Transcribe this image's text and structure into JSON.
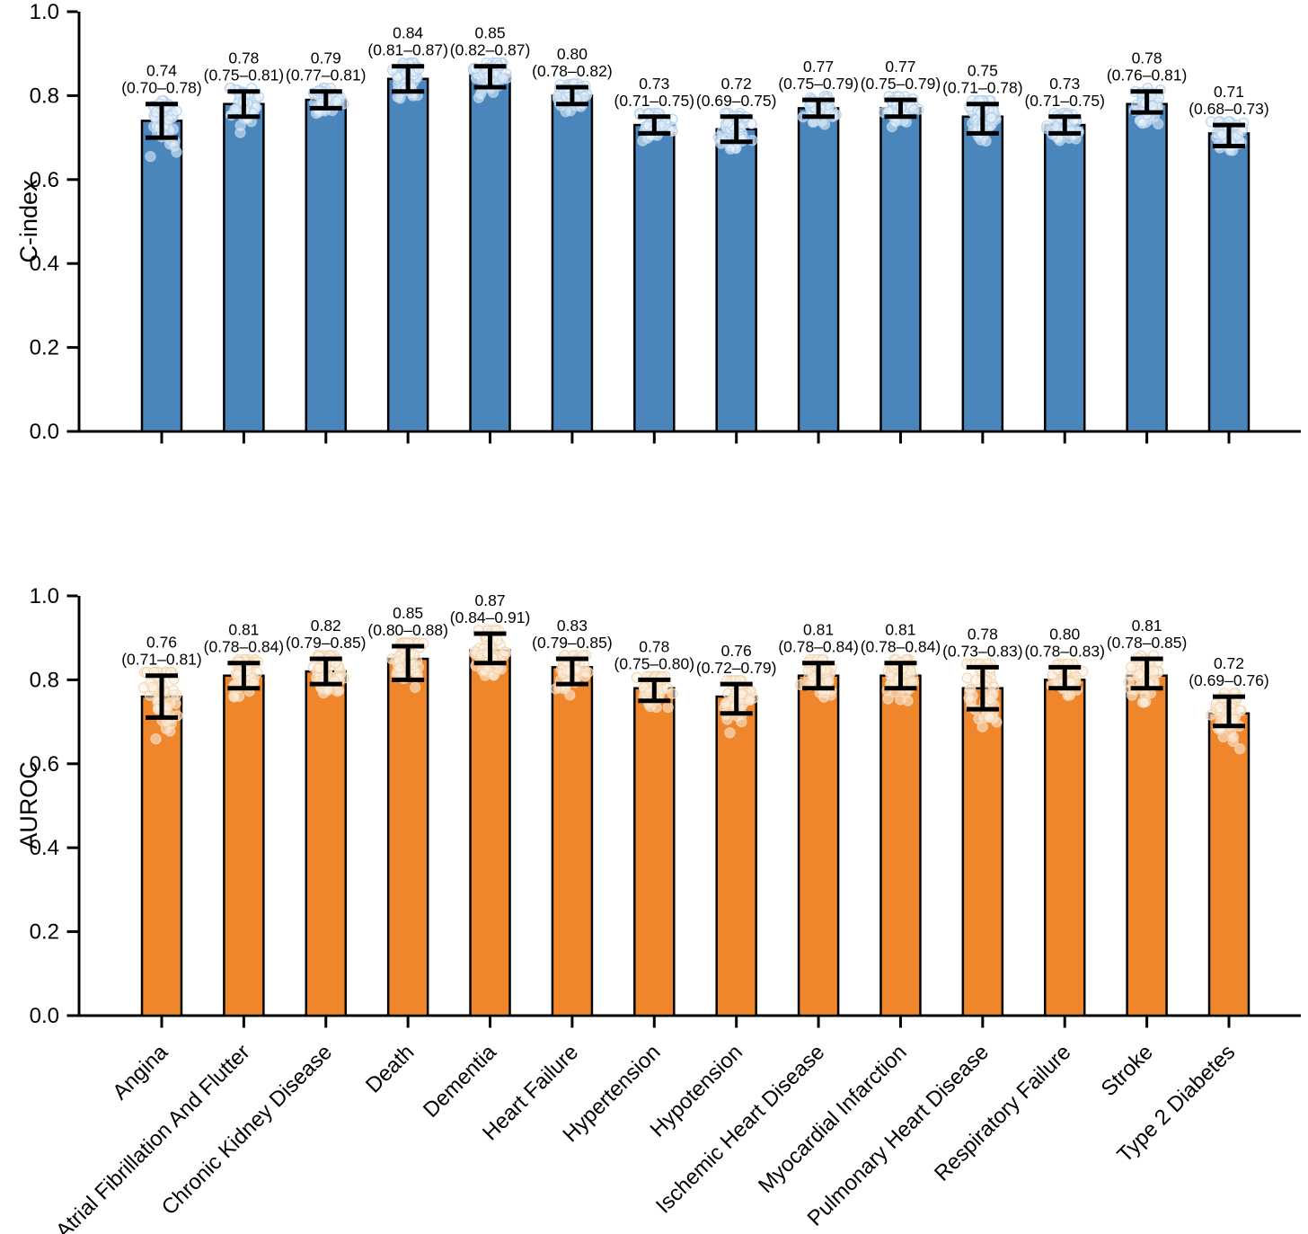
{
  "figure": {
    "background": "#ffffff"
  },
  "categories": [
    "Angina",
    "Atrial Fibrillation And Flutter",
    "Chronic Kidney Disease",
    "Death",
    "Dementia",
    "Heart Failure",
    "Hypertension",
    "Hypotension",
    "Ischemic Heart Disease",
    "Myocardial Infarction",
    "Pulmonary Heart Disease",
    "Respiratory Failure",
    "Stroke",
    "Type 2 Diabetes"
  ],
  "chart_data": [
    {
      "type": "bar",
      "panel": "top",
      "ylabel": "C-index",
      "ylim": [
        0,
        1
      ],
      "yticks": [
        "0.0",
        "0.2",
        "0.4",
        "0.6",
        "0.8",
        "1.0"
      ],
      "grid": false,
      "legend": false,
      "bar_color": "#4A85BC",
      "bar_edge_color": "#000000",
      "error_color": "#000000",
      "point_fill": "rgba(234,242,250,0.55)",
      "point_edge": "rgba(180,208,235,0.85)",
      "show_category_labels": false,
      "bars": [
        {
          "category": "Angina",
          "value": 0.74,
          "ci_low": 0.7,
          "ci_high": 0.78,
          "label_value": "0.74",
          "label_ci": "(0.70–0.78)"
        },
        {
          "category": "Atrial Fibrillation And Flutter",
          "value": 0.78,
          "ci_low": 0.75,
          "ci_high": 0.81,
          "label_value": "0.78",
          "label_ci": "(0.75–0.81)"
        },
        {
          "category": "Chronic Kidney Disease",
          "value": 0.79,
          "ci_low": 0.77,
          "ci_high": 0.81,
          "label_value": "0.79",
          "label_ci": "(0.77–0.81)"
        },
        {
          "category": "Death",
          "value": 0.84,
          "ci_low": 0.81,
          "ci_high": 0.87,
          "label_value": "0.84",
          "label_ci": "(0.81–0.87)"
        },
        {
          "category": "Dementia",
          "value": 0.85,
          "ci_low": 0.82,
          "ci_high": 0.87,
          "label_value": "0.85",
          "label_ci": "(0.82–0.87)"
        },
        {
          "category": "Heart Failure",
          "value": 0.8,
          "ci_low": 0.78,
          "ci_high": 0.82,
          "label_value": "0.80",
          "label_ci": "(0.78–0.82)"
        },
        {
          "category": "Hypertension",
          "value": 0.73,
          "ci_low": 0.71,
          "ci_high": 0.75,
          "label_value": "0.73",
          "label_ci": "(0.71–0.75)"
        },
        {
          "category": "Hypotension",
          "value": 0.72,
          "ci_low": 0.69,
          "ci_high": 0.75,
          "label_value": "0.72",
          "label_ci": "(0.69–0.75)"
        },
        {
          "category": "Ischemic Heart Disease",
          "value": 0.77,
          "ci_low": 0.75,
          "ci_high": 0.79,
          "label_value": "0.77",
          "label_ci": "(0.75–0.79)"
        },
        {
          "category": "Myocardial Infarction",
          "value": 0.77,
          "ci_low": 0.75,
          "ci_high": 0.79,
          "label_value": "0.77",
          "label_ci": "(0.75–0.79)"
        },
        {
          "category": "Pulmonary Heart Disease",
          "value": 0.75,
          "ci_low": 0.71,
          "ci_high": 0.78,
          "label_value": "0.75",
          "label_ci": "(0.71–0.78)"
        },
        {
          "category": "Respiratory Failure",
          "value": 0.73,
          "ci_low": 0.71,
          "ci_high": 0.75,
          "label_value": "0.73",
          "label_ci": "(0.71–0.75)"
        },
        {
          "category": "Stroke",
          "value": 0.78,
          "ci_low": 0.76,
          "ci_high": 0.81,
          "label_value": "0.78",
          "label_ci": "(0.76–0.81)"
        },
        {
          "category": "Type 2 Diabetes",
          "value": 0.71,
          "ci_low": 0.68,
          "ci_high": 0.73,
          "label_value": "0.71",
          "label_ci": "(0.68–0.73)"
        }
      ]
    },
    {
      "type": "bar",
      "panel": "bottom",
      "ylabel": "AUROC",
      "ylim": [
        0,
        1
      ],
      "yticks": [
        "0.0",
        "0.2",
        "0.4",
        "0.6",
        "0.8",
        "1.0"
      ],
      "grid": false,
      "legend": false,
      "bar_color": "#EF862C",
      "bar_edge_color": "#000000",
      "error_color": "#000000",
      "point_fill": "rgba(252,243,231,0.55)",
      "point_edge": "rgba(243,211,173,0.85)",
      "show_category_labels": true,
      "bars": [
        {
          "category": "Angina",
          "value": 0.76,
          "ci_low": 0.71,
          "ci_high": 0.81,
          "label_value": "0.76",
          "label_ci": "(0.71–0.81)"
        },
        {
          "category": "Atrial Fibrillation And Flutter",
          "value": 0.81,
          "ci_low": 0.78,
          "ci_high": 0.84,
          "label_value": "0.81",
          "label_ci": "(0.78–0.84)"
        },
        {
          "category": "Chronic Kidney Disease",
          "value": 0.82,
          "ci_low": 0.79,
          "ci_high": 0.85,
          "label_value": "0.82",
          "label_ci": "(0.79–0.85)"
        },
        {
          "category": "Death",
          "value": 0.85,
          "ci_low": 0.8,
          "ci_high": 0.88,
          "label_value": "0.85",
          "label_ci": "(0.80–0.88)"
        },
        {
          "category": "Dementia",
          "value": 0.87,
          "ci_low": 0.84,
          "ci_high": 0.91,
          "label_value": "0.87",
          "label_ci": "(0.84–0.91)"
        },
        {
          "category": "Heart Failure",
          "value": 0.83,
          "ci_low": 0.79,
          "ci_high": 0.85,
          "label_value": "0.83",
          "label_ci": "(0.79–0.85)"
        },
        {
          "category": "Hypertension",
          "value": 0.78,
          "ci_low": 0.75,
          "ci_high": 0.8,
          "label_value": "0.78",
          "label_ci": "(0.75–0.80)"
        },
        {
          "category": "Hypotension",
          "value": 0.76,
          "ci_low": 0.72,
          "ci_high": 0.79,
          "label_value": "0.76",
          "label_ci": "(0.72–0.79)"
        },
        {
          "category": "Ischemic Heart Disease",
          "value": 0.81,
          "ci_low": 0.78,
          "ci_high": 0.84,
          "label_value": "0.81",
          "label_ci": "(0.78–0.84)"
        },
        {
          "category": "Myocardial Infarction",
          "value": 0.81,
          "ci_low": 0.78,
          "ci_high": 0.84,
          "label_value": "0.81",
          "label_ci": "(0.78–0.84)"
        },
        {
          "category": "Pulmonary Heart Disease",
          "value": 0.78,
          "ci_low": 0.73,
          "ci_high": 0.83,
          "label_value": "0.78",
          "label_ci": "(0.73–0.83)"
        },
        {
          "category": "Respiratory Failure",
          "value": 0.8,
          "ci_low": 0.78,
          "ci_high": 0.83,
          "label_value": "0.80",
          "label_ci": "(0.78–0.83)"
        },
        {
          "category": "Stroke",
          "value": 0.81,
          "ci_low": 0.78,
          "ci_high": 0.85,
          "label_value": "0.81",
          "label_ci": "(0.78–0.85)"
        },
        {
          "category": "Type 2 Diabetes",
          "value": 0.72,
          "ci_low": 0.69,
          "ci_high": 0.76,
          "label_value": "0.72",
          "label_ci": "(0.69–0.76)"
        }
      ]
    }
  ]
}
